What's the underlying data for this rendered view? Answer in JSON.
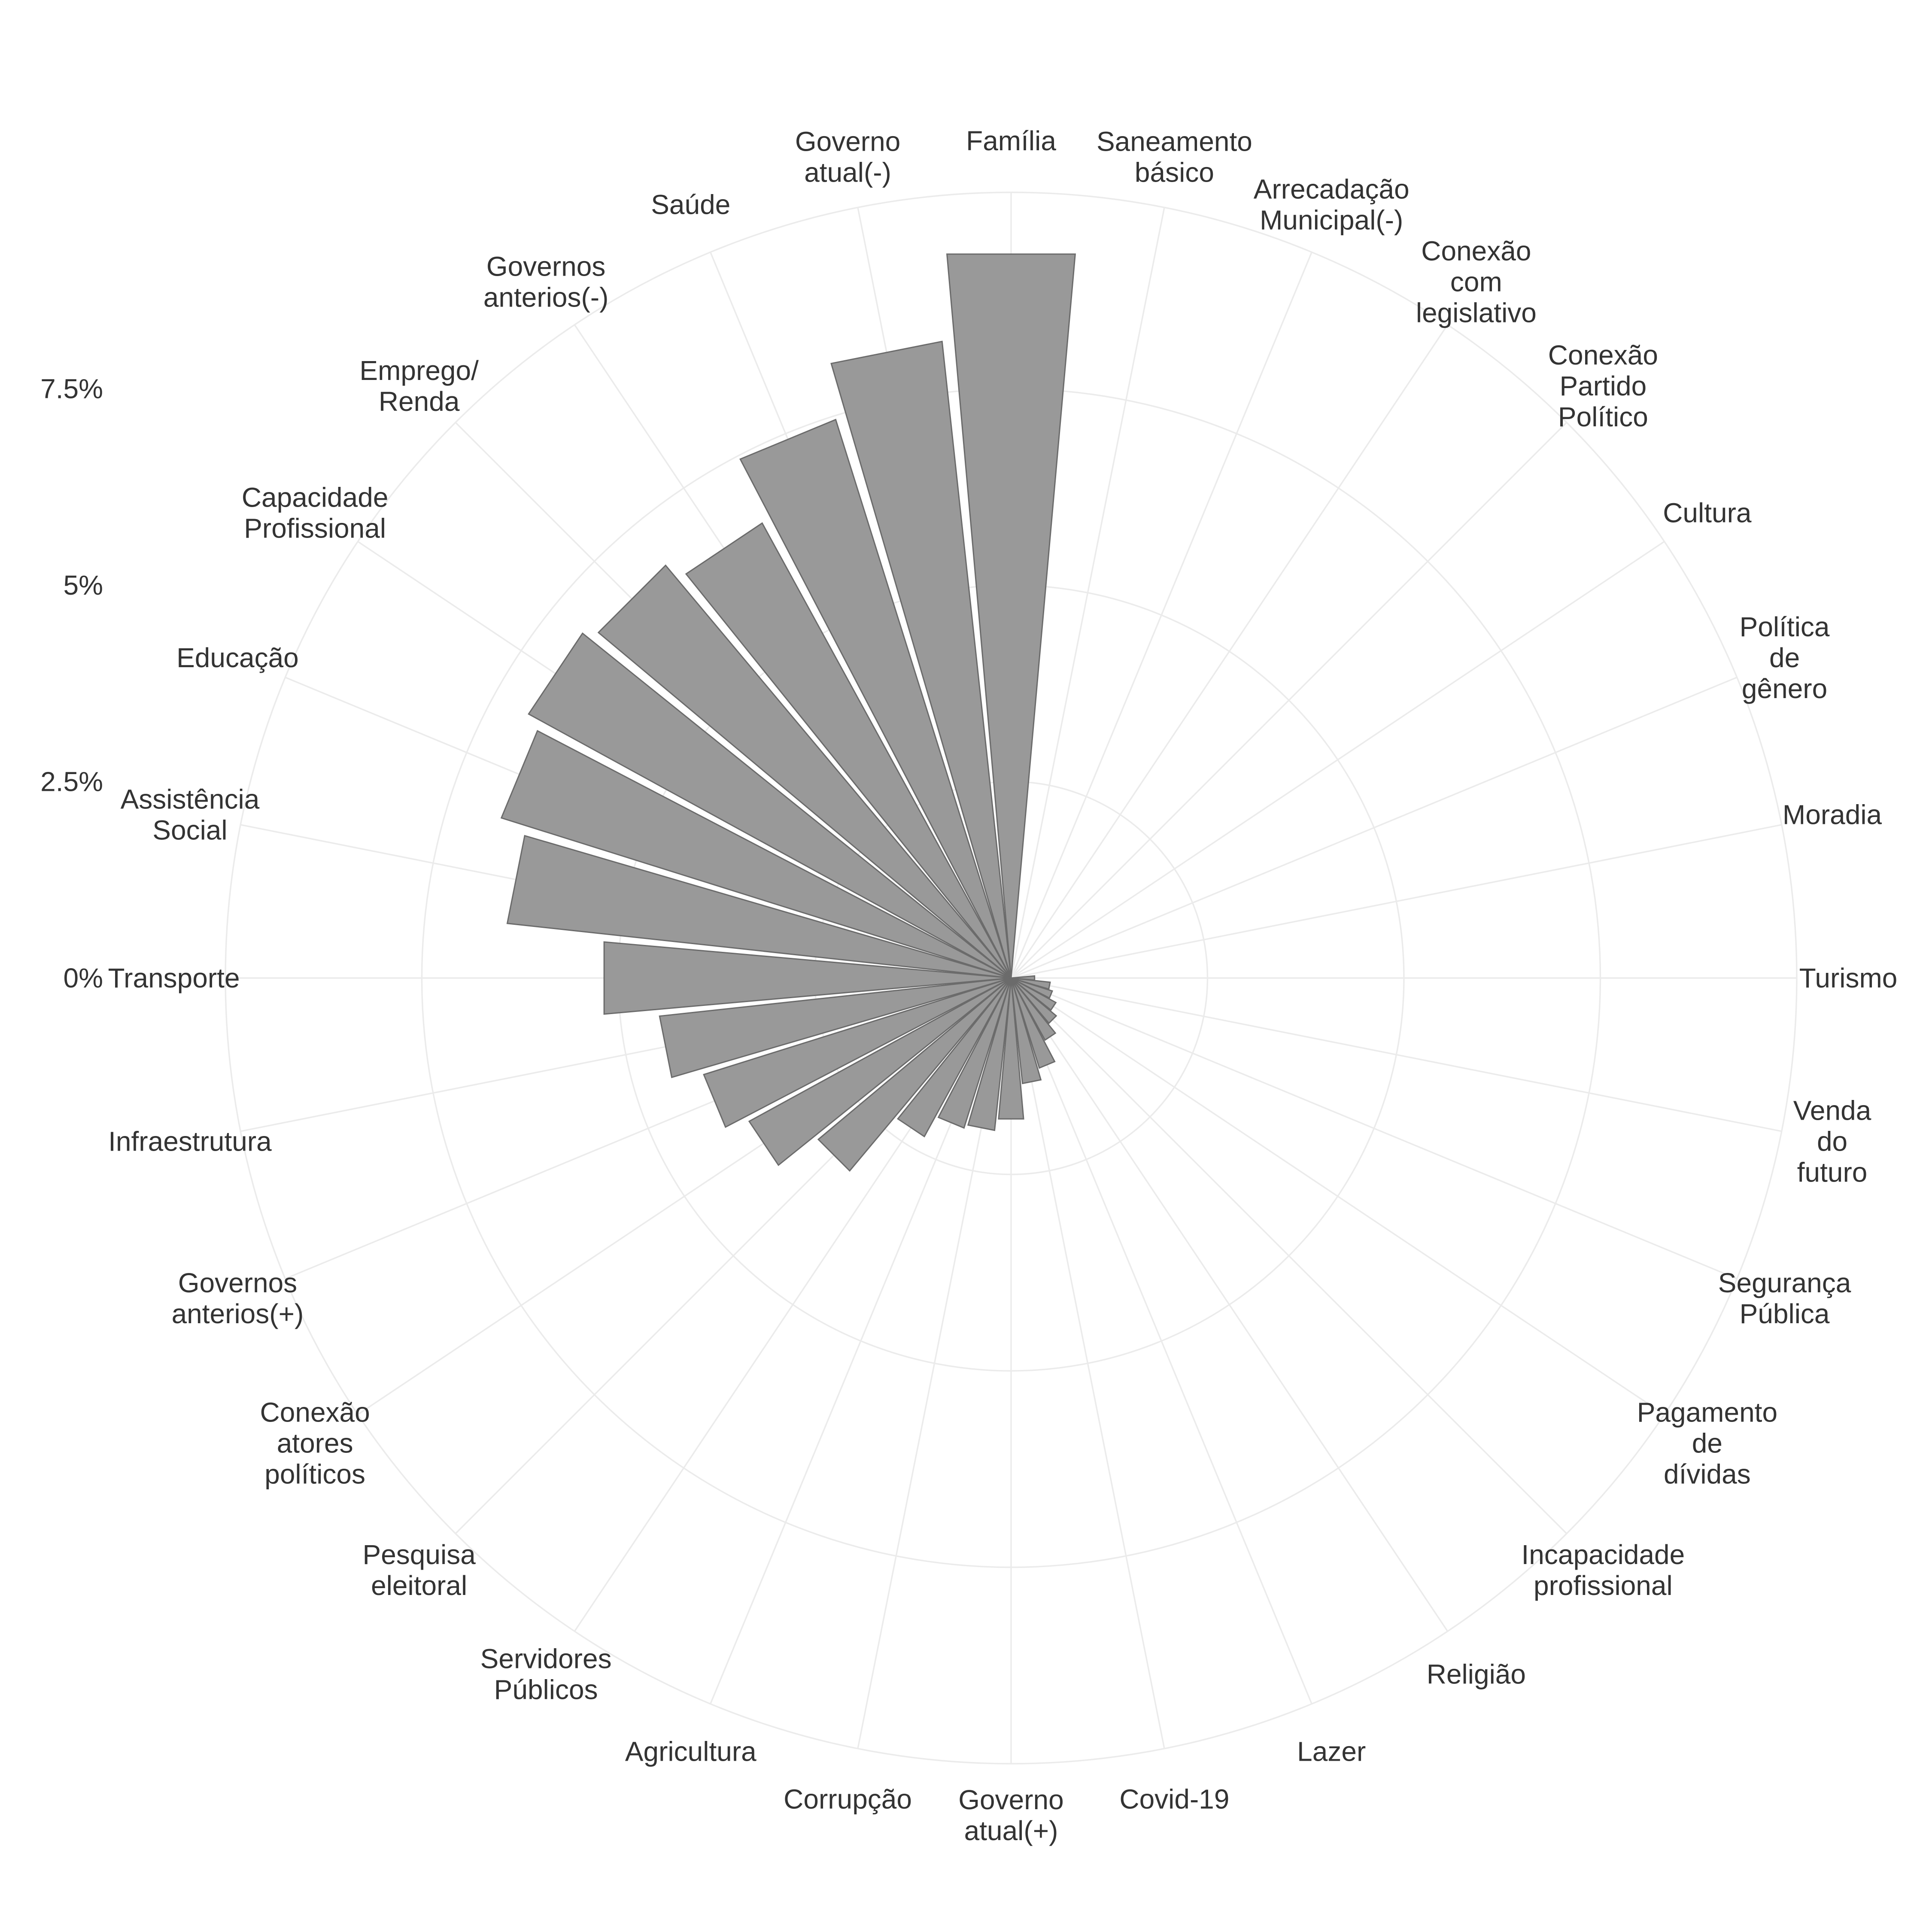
{
  "chart_data": {
    "type": "polar-bar",
    "y_unit": "%",
    "ylim": [
      0,
      10
    ],
    "grid": true,
    "bar_color": "#999999",
    "radial_ticks": [
      {
        "value": 0,
        "label": "0%"
      },
      {
        "value": 2.5,
        "label": "2.5%"
      },
      {
        "value": 5,
        "label": "5%"
      },
      {
        "value": 7.5,
        "label": "7.5%"
      }
    ],
    "categories": [
      [
        "Família"
      ],
      [
        "Saneamento",
        "básico"
      ],
      [
        "Arrecadação",
        "Municipal(-)"
      ],
      [
        "Conexão",
        "com",
        "legislativo"
      ],
      [
        "Conexão",
        "Partido",
        "Político"
      ],
      [
        "Cultura"
      ],
      [
        "Política",
        "de",
        "gênero"
      ],
      [
        "Moradia"
      ],
      [
        "Turismo"
      ],
      [
        "Venda",
        "do",
        "futuro"
      ],
      [
        "Segurança",
        "Pública"
      ],
      [
        "Pagamento",
        "de",
        "dívidas"
      ],
      [
        "Incapacidade",
        "profissional"
      ],
      [
        "Religião"
      ],
      [
        "Lazer"
      ],
      [
        "Covid-19"
      ],
      [
        "Governo",
        "atual(+)"
      ],
      [
        "Corrupção"
      ],
      [
        "Agricultura"
      ],
      [
        "Servidores",
        "Públicos"
      ],
      [
        "Pesquisa",
        "eleitoral"
      ],
      [
        "Conexão",
        "atores",
        "políticos"
      ],
      [
        "Governos",
        "anterios(+)"
      ],
      [
        "Infraestrutura"
      ],
      [
        "Transporte"
      ],
      [
        "Assistência",
        "Social"
      ],
      [
        "Educação"
      ],
      [
        "Capacidade",
        "Profissional"
      ],
      [
        "Emprego/",
        "Renda"
      ],
      [
        "Governos",
        "anterios(-)"
      ],
      [
        "Saúde"
      ],
      [
        "Governo",
        "atual(-)"
      ]
    ],
    "values": [
      9.25,
      0.0,
      0.0,
      0.0,
      0.0,
      0.0,
      0.0,
      0.0,
      0.3,
      0.5,
      0.55,
      0.65,
      0.75,
      0.9,
      1.2,
      1.35,
      1.8,
      1.95,
      2.0,
      2.3,
      3.2,
      3.8,
      4.1,
      4.5,
      5.2,
      6.45,
      6.8,
      7.0,
      6.85,
      6.6,
      7.45,
      8.15
    ]
  }
}
